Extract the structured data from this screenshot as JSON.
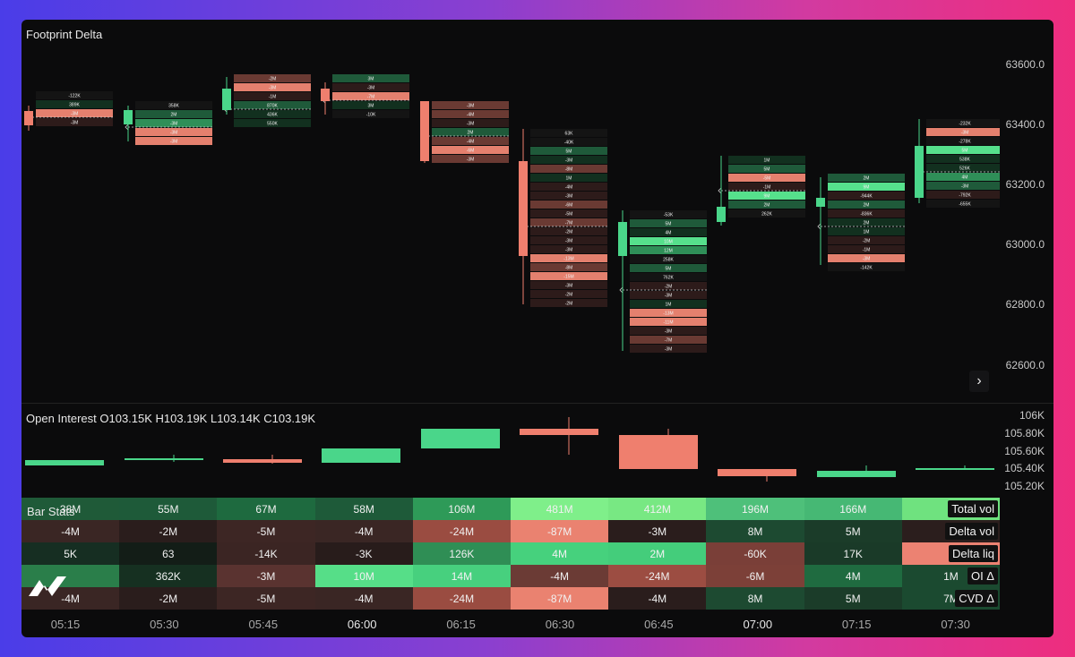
{
  "main_panel": {
    "title": "Footprint Delta",
    "price_axis": [
      "63600.0",
      "63400.0",
      "63200.0",
      "63000.0",
      "62800.0",
      "62600.0"
    ],
    "expand_icon": "chevron-right-icon",
    "footprints": [
      {
        "labels": [
          "-122K",
          "389K",
          "-3M",
          "-3M"
        ],
        "tones": [
          "d1",
          "g1",
          "r3",
          "r1"
        ]
      },
      {
        "labels": [
          "358K",
          "2M",
          "-3M",
          "-3M",
          "-3M"
        ],
        "tones": [
          "d1",
          "g2",
          "g3",
          "r3",
          "r3"
        ]
      },
      {
        "labels": [
          "-2M",
          "-3M",
          "-1M",
          "870K",
          "436K",
          "550K"
        ],
        "tones": [
          "r2",
          "r3",
          "r1",
          "g2",
          "g1",
          "g1"
        ]
      },
      {
        "labels": [
          "3M",
          "-3M",
          "-7M",
          "3M",
          "-10K"
        ],
        "tones": [
          "g2",
          "r1",
          "r3",
          "g1",
          "d1"
        ]
      },
      {
        "labels": [
          "-3M",
          "-4M",
          "-3M",
          "2M",
          "-4M",
          "-6M",
          "-3M"
        ],
        "tones": [
          "r2",
          "r2",
          "r1",
          "g2",
          "r2",
          "r3",
          "r2"
        ]
      },
      {
        "labels": [
          "63K",
          "-40K",
          "5M",
          "-3M",
          "-8M",
          "1M",
          "-4M",
          "-3M",
          "-6M",
          "-5M",
          "-7M",
          "-2M",
          "-3M",
          "-3M",
          "-13M",
          "-8M",
          "-15M",
          "-3M",
          "-2M",
          "-2M"
        ],
        "tones": [
          "d1",
          "d1",
          "g2",
          "g1",
          "r2",
          "g1",
          "r1",
          "r1",
          "r2",
          "r1",
          "r2",
          "r1",
          "r1",
          "r1",
          "r3",
          "r2",
          "r3",
          "r1",
          "r1",
          "r1"
        ]
      },
      {
        "labels": [
          "-53K",
          "5M",
          "4M",
          "10M",
          "12M",
          "258K",
          "5M",
          "762K",
          "-2M",
          "-3M",
          "1M",
          "-13M",
          "-11M",
          "-3M",
          "-7M",
          "-3M"
        ],
        "tones": [
          "d1",
          "g2",
          "g1",
          "g4",
          "g3",
          "d1",
          "g2",
          "d1",
          "r1",
          "r1",
          "g1",
          "r3",
          "r3",
          "r1",
          "r2",
          "r1"
        ]
      },
      {
        "labels": [
          "1M",
          "5M",
          "-5M",
          "-1M",
          "9M",
          "2M",
          "262K"
        ],
        "tones": [
          "g1",
          "g2",
          "r3",
          "r1",
          "g4",
          "g2",
          "d1"
        ]
      },
      {
        "labels": [
          "2M",
          "9M",
          "-944K",
          "2M",
          "-836K",
          "2M",
          "1M",
          "-2M",
          "-1M",
          "-3M",
          "-142K"
        ],
        "tones": [
          "g2",
          "g4",
          "r1",
          "g2",
          "r1",
          "g1",
          "g1",
          "r1",
          "r1",
          "r3",
          "d1"
        ]
      },
      {
        "labels": [
          "-232K",
          "-3M",
          "-278K",
          "5M",
          "538K",
          "526K",
          "4M",
          "-3M",
          "-792K",
          "-655K"
        ],
        "tones": [
          "d1",
          "r3",
          "d1",
          "g4",
          "g1",
          "g1",
          "g3",
          "g2",
          "r1",
          "d1"
        ]
      }
    ]
  },
  "oi_panel": {
    "title": "Open Interest O103.15K  H103.19K  L103.14K  C103.19K",
    "axis": [
      "106K",
      "105.80K",
      "105.60K",
      "105.40K",
      "105.20K"
    ]
  },
  "bar_stats": {
    "title": "Bar Stats",
    "rows": [
      {
        "label": "Total vol",
        "values": [
          "38M",
          "55M",
          "67M",
          "58M",
          "106M",
          "481M",
          "412M",
          "196M",
          "166M",
          "1"
        ],
        "colors": [
          "#1f5a38",
          "#1e5a39",
          "#1e6a3f",
          "#1e5a39",
          "#2e9a58",
          "#7fef8a",
          "#78e883",
          "#4ec07a",
          "#46b874",
          "#6fe27f"
        ]
      },
      {
        "label": "Delta vol",
        "values": [
          "-4M",
          "-2M",
          "-5M",
          "-4M",
          "-24M",
          "-87M",
          "-3M",
          "8M",
          "5M",
          "-4"
        ],
        "colors": [
          "#3a2624",
          "#2a1d1c",
          "#3d2624",
          "#3a2624",
          "#9a4c41",
          "#ea8270",
          "#2a1d1c",
          "#1d4a31",
          "#1b3c29",
          "#2b1e1d"
        ]
      },
      {
        "label": "Delta liq",
        "values": [
          "5K",
          "63",
          "-14K",
          "-3K",
          "126K",
          "4M",
          "2M",
          "-60K",
          "17K",
          ""
        ],
        "colors": [
          "#162e22",
          "#131d17",
          "#3b2523",
          "#281c1b",
          "#2f8e55",
          "#46d17d",
          "#44cd7b",
          "#7a3f38",
          "#1a3a28",
          "#ec8272"
        ]
      },
      {
        "label": "OI Δ",
        "values": [
          "",
          "362K",
          "-3M",
          "10M",
          "14M",
          "-4M",
          "-24M",
          "-6M",
          "4M",
          "1M"
        ],
        "colors": [
          "#2a7e4a",
          "#163021",
          "#5a3330",
          "#56de88",
          "#47d07e",
          "#6b3b35",
          "#9c4d42",
          "#7c4038",
          "#1f6b40",
          "#1b4a30"
        ]
      },
      {
        "label": "CVD Δ",
        "values": [
          "-4M",
          "-2M",
          "-5M",
          "-4M",
          "-24M",
          "-87M",
          "-4M",
          "8M",
          "5M",
          "7M"
        ],
        "colors": [
          "#3a2624",
          "#2a1d1c",
          "#3d2624",
          "#3a2624",
          "#9a4c41",
          "#ea8270",
          "#2a1d1c",
          "#1d4a31",
          "#1b3c29",
          "#1b4a30"
        ]
      }
    ]
  },
  "time_axis": [
    "05:15",
    "05:30",
    "05:45",
    "06:00",
    "06:15",
    "06:30",
    "06:45",
    "07:00",
    "07:15",
    "07:30"
  ],
  "colors": {
    "up": "#4ad68a",
    "down": "#ef7f6e",
    "background": "#0b0b0c"
  },
  "logo_icon": "brand-logo-icon"
}
